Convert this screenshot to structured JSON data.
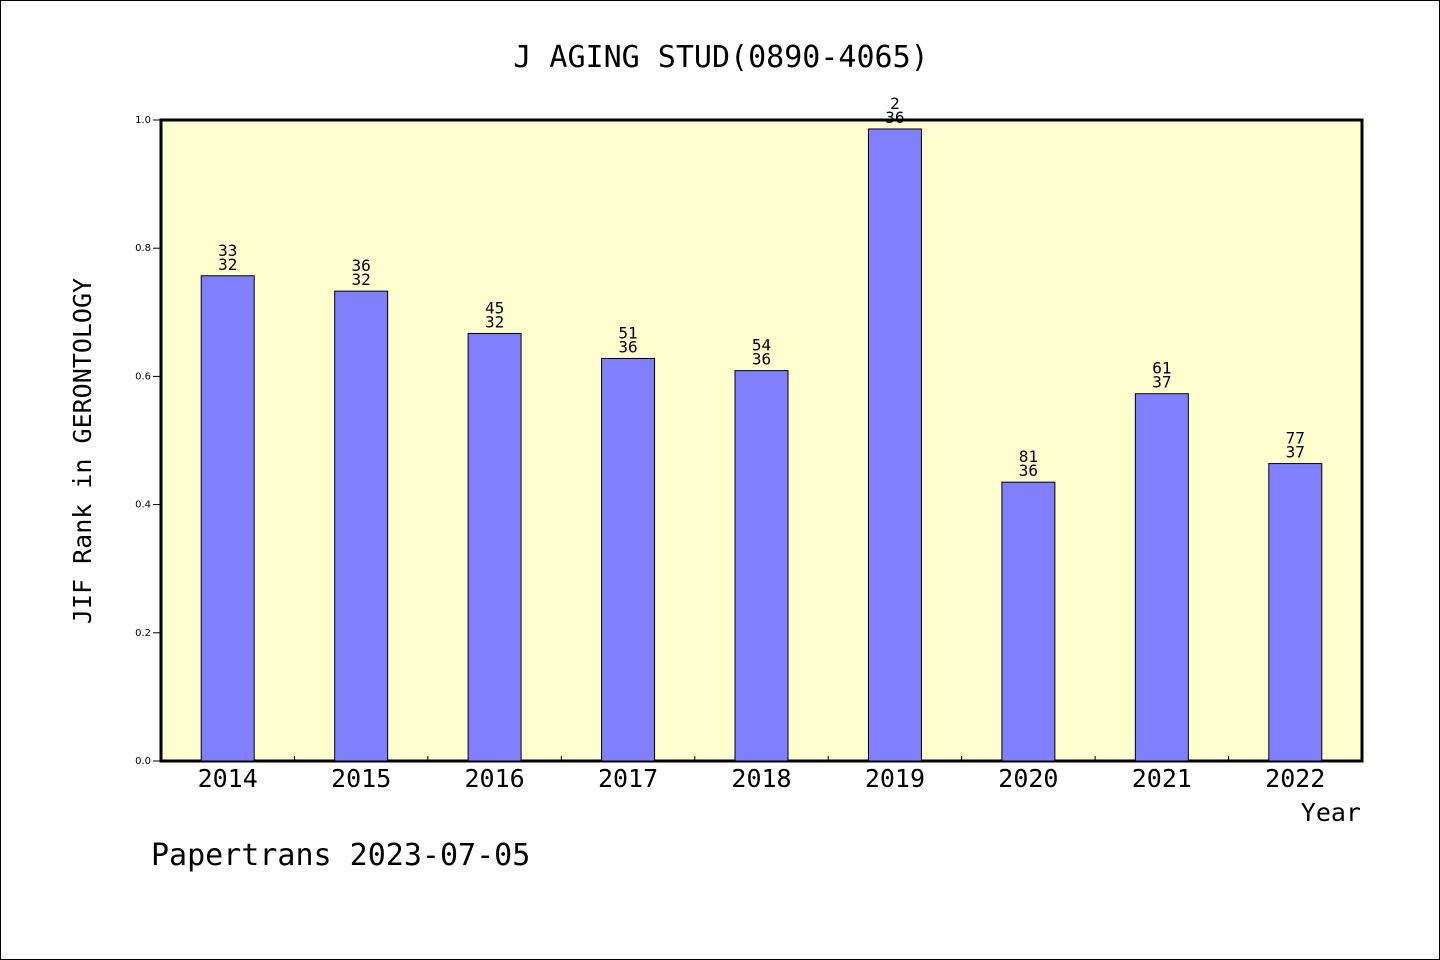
{
  "chart_data": {
    "type": "bar",
    "title": "J AGING STUD(0890-4065)",
    "xlabel": "Year",
    "ylabel": "JIF Rank in GERONTOLOGY",
    "ylim": [
      0,
      1.0
    ],
    "yticks": [
      0.0,
      0.2,
      0.4,
      0.6,
      0.8,
      1.0
    ],
    "ytick_labels": [
      "0.0",
      "0.2",
      "0.4",
      "0.6",
      "0.8",
      "1.0"
    ],
    "grid": false,
    "categories": [
      "2014",
      "2015",
      "2016",
      "2017",
      "2018",
      "2019",
      "2020",
      "2021",
      "2022"
    ],
    "values": [
      0.757,
      0.733,
      0.667,
      0.628,
      0.609,
      0.986,
      0.435,
      0.573,
      0.464
    ],
    "labels_top": [
      "33",
      "36",
      "45",
      "51",
      "54",
      "2",
      "81",
      "61",
      "77"
    ],
    "labels_bottom": [
      "32",
      "32",
      "32",
      "36",
      "36",
      "36",
      "36",
      "37",
      "37"
    ],
    "colors": {
      "plot_bg": "#FFFFD0",
      "bar_fill": "#8080FF",
      "bar_stroke": "#000000",
      "axis": "#000000"
    }
  },
  "footer": "Papertrans 2023-07-05"
}
